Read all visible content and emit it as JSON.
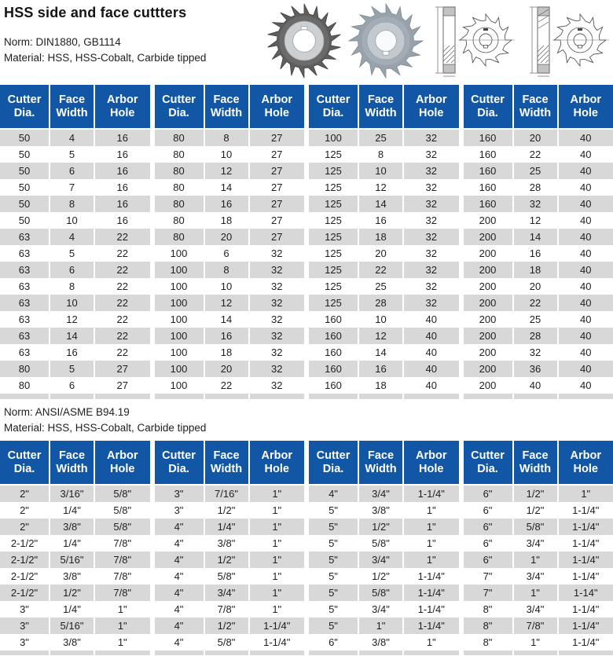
{
  "page": {
    "title": "HSS side and face cuttters"
  },
  "sections": {
    "metric": {
      "norm": "Norm: DIN1880, GB1114",
      "material": "Material: HSS, HSS-Cobalt, Carbide tipped"
    },
    "inch": {
      "norm": "Norm: ANSI/ASME B94.19",
      "material": "Material: HSS, HSS-Cobalt, Carbide tipped"
    }
  },
  "table_headers": [
    {
      "line1": "Cutter",
      "line2": "Dia."
    },
    {
      "line1": "Face",
      "line2": "Width"
    },
    {
      "line1": "Arbor",
      "line2": "Hole"
    }
  ],
  "images": {
    "photo1": "side-and-face-cutter-photo",
    "photo2": "staggered-tooth-cutter-photo",
    "drawing1": "cutter-dimension-drawing",
    "drawing2": "cutter-dimension-drawing-staggered"
  },
  "colors": {
    "header_blue": "#1257a5",
    "row_gray": "#d8d8d8",
    "text_dark": "#1f1f1f"
  },
  "metric_table": {
    "groups": [
      {
        "rows": [
          [
            50,
            4,
            16
          ],
          [
            50,
            5,
            16
          ],
          [
            50,
            6,
            16
          ],
          [
            50,
            7,
            16
          ],
          [
            50,
            8,
            16
          ],
          [
            50,
            10,
            16
          ],
          [
            63,
            4,
            22
          ],
          [
            63,
            5,
            22
          ],
          [
            63,
            6,
            22
          ],
          [
            63,
            8,
            22
          ],
          [
            63,
            10,
            22
          ],
          [
            63,
            12,
            22
          ],
          [
            63,
            14,
            22
          ],
          [
            63,
            16,
            22
          ],
          [
            80,
            5,
            27
          ],
          [
            80,
            6,
            27
          ]
        ]
      },
      {
        "rows": [
          [
            80,
            8,
            27
          ],
          [
            80,
            10,
            27
          ],
          [
            80,
            12,
            27
          ],
          [
            80,
            14,
            27
          ],
          [
            80,
            16,
            27
          ],
          [
            80,
            18,
            27
          ],
          [
            80,
            20,
            27
          ],
          [
            100,
            6,
            32
          ],
          [
            100,
            8,
            32
          ],
          [
            100,
            10,
            32
          ],
          [
            100,
            12,
            32
          ],
          [
            100,
            14,
            32
          ],
          [
            100,
            16,
            32
          ],
          [
            100,
            18,
            32
          ],
          [
            100,
            20,
            32
          ],
          [
            100,
            22,
            32
          ]
        ]
      },
      {
        "rows": [
          [
            100,
            25,
            32
          ],
          [
            125,
            8,
            32
          ],
          [
            125,
            10,
            32
          ],
          [
            125,
            12,
            32
          ],
          [
            125,
            14,
            32
          ],
          [
            125,
            16,
            32
          ],
          [
            125,
            18,
            32
          ],
          [
            125,
            20,
            32
          ],
          [
            125,
            22,
            32
          ],
          [
            125,
            25,
            32
          ],
          [
            125,
            28,
            32
          ],
          [
            160,
            10,
            40
          ],
          [
            160,
            12,
            40
          ],
          [
            160,
            14,
            40
          ],
          [
            160,
            16,
            40
          ],
          [
            160,
            18,
            40
          ]
        ]
      },
      {
        "rows": [
          [
            160,
            20,
            40
          ],
          [
            160,
            22,
            40
          ],
          [
            160,
            25,
            40
          ],
          [
            160,
            28,
            40
          ],
          [
            160,
            32,
            40
          ],
          [
            200,
            12,
            40
          ],
          [
            200,
            14,
            40
          ],
          [
            200,
            16,
            40
          ],
          [
            200,
            18,
            40
          ],
          [
            200,
            20,
            40
          ],
          [
            200,
            22,
            40
          ],
          [
            200,
            25,
            40
          ],
          [
            200,
            28,
            40
          ],
          [
            200,
            32,
            40
          ],
          [
            200,
            36,
            40
          ],
          [
            200,
            40,
            40
          ]
        ]
      }
    ]
  },
  "inch_table": {
    "groups": [
      {
        "rows": [
          [
            "2\"",
            "3/16\"",
            "5/8\""
          ],
          [
            "2\"",
            "1/4\"",
            "5/8\""
          ],
          [
            "2\"",
            "3/8\"",
            "5/8\""
          ],
          [
            "2-1/2\"",
            "1/4\"",
            "7/8\""
          ],
          [
            "2-1/2\"",
            "5/16\"",
            "7/8\""
          ],
          [
            "2-1/2\"",
            "3/8\"",
            "7/8\""
          ],
          [
            "2-1/2\"",
            "1/2\"",
            "7/8\""
          ],
          [
            "3\"",
            "1/4\"",
            "1\""
          ],
          [
            "3\"",
            "5/16\"",
            "1\""
          ],
          [
            "3\"",
            "3/8\"",
            "1\""
          ]
        ]
      },
      {
        "rows": [
          [
            "3\"",
            "7/16\"",
            "1\""
          ],
          [
            "3\"",
            "1/2\"",
            "1\""
          ],
          [
            "4\"",
            "1/4\"",
            "1\""
          ],
          [
            "4\"",
            "3/8\"",
            "1\""
          ],
          [
            "4\"",
            "1/2\"",
            "1\""
          ],
          [
            "4\"",
            "5/8\"",
            "1\""
          ],
          [
            "4\"",
            "3/4\"",
            "1\""
          ],
          [
            "4\"",
            "7/8\"",
            "1\""
          ],
          [
            "4\"",
            "1/2\"",
            "1-1/4\""
          ],
          [
            "4\"",
            "5/8\"",
            "1-1/4\""
          ]
        ]
      },
      {
        "rows": [
          [
            "4\"",
            "3/4\"",
            "1-1/4\""
          ],
          [
            "5\"",
            "3/8\"",
            "1\""
          ],
          [
            "5\"",
            "1/2\"",
            "1\""
          ],
          [
            "5\"",
            "5/8\"",
            "1\""
          ],
          [
            "5\"",
            "3/4\"",
            "1\""
          ],
          [
            "5\"",
            "1/2\"",
            "1-1/4\""
          ],
          [
            "5\"",
            "5/8\"",
            "1-1/4\""
          ],
          [
            "5\"",
            "3/4\"",
            "1-1/4\""
          ],
          [
            "5\"",
            "1\"",
            "1-1/4\""
          ],
          [
            "6\"",
            "3/8\"",
            "1\""
          ]
        ]
      },
      {
        "rows": [
          [
            "6\"",
            "1/2\"",
            "1\""
          ],
          [
            "6\"",
            "1/2\"",
            "1-1/4\""
          ],
          [
            "6\"",
            "5/8\"",
            "1-1/4\""
          ],
          [
            "6\"",
            "3/4\"",
            "1-1/4\""
          ],
          [
            "6\"",
            "1\"",
            "1-1/4\""
          ],
          [
            "7\"",
            "3/4\"",
            "1-1/4\""
          ],
          [
            "7\"",
            "1\"",
            "1-14\""
          ],
          [
            "8\"",
            "3/4\"",
            "1-1/4\""
          ],
          [
            "8\"",
            "7/8\"",
            "1-1/4\""
          ],
          [
            "8\"",
            "1\"",
            "1-1/4\""
          ]
        ]
      }
    ]
  }
}
